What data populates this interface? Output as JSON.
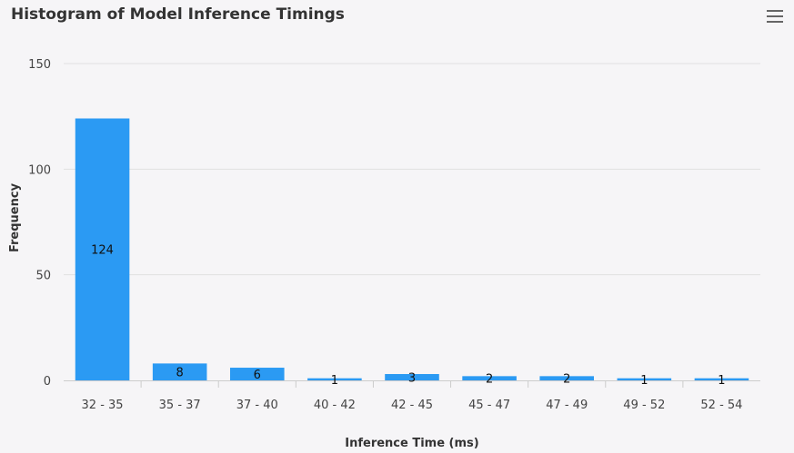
{
  "chart_data": {
    "type": "bar",
    "title": "Histogram of Model Inference Timings",
    "xlabel": "Inference Time (ms)",
    "ylabel": "Frequency",
    "categories": [
      "32 - 35",
      "35 - 37",
      "37 - 40",
      "40 - 42",
      "42 - 45",
      "45 - 47",
      "47 - 49",
      "49 - 52",
      "52 - 54"
    ],
    "values": [
      124,
      8,
      6,
      1,
      3,
      2,
      2,
      1,
      1
    ],
    "ylim": [
      0,
      150
    ],
    "yticks": [
      0,
      50,
      100,
      150
    ],
    "grid": true,
    "legend": "none",
    "bar_color": "#2b9af3",
    "data_labels": true
  },
  "toolbar": {
    "menu_icon": "hamburger-menu-icon"
  }
}
